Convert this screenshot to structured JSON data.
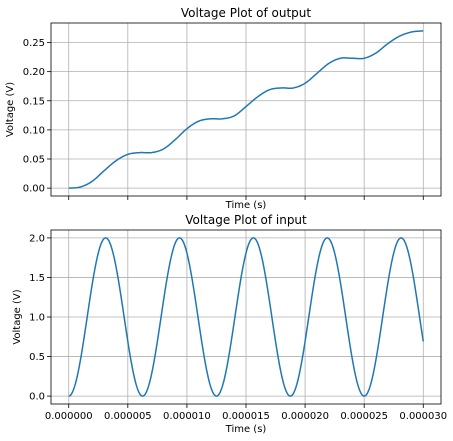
{
  "chart_data": [
    {
      "type": "line",
      "title": "Voltage Plot of output",
      "xlabel": "Time (s)",
      "ylabel": "Voltage (V)",
      "xlim": [
        -1.5e-06,
        3.15e-05
      ],
      "ylim": [
        -0.0135,
        0.2835
      ],
      "grid": true,
      "x_tick_values": [
        0,
        5e-06,
        1e-05,
        1.5e-05,
        2e-05,
        2.5e-05,
        3e-05
      ],
      "x_tick_labels": [],
      "y_ticks": [
        0.0,
        0.05,
        0.1,
        0.15,
        0.2,
        0.25
      ],
      "y_tick_labels": [
        "0.00",
        "0.05",
        "0.10",
        "0.15",
        "0.20",
        "0.25"
      ],
      "color": "#1f77b4",
      "series": [
        {
          "x": [
            0,
            1e-06,
            2e-06,
            3e-06,
            4e-06,
            5e-06,
            6e-06,
            7e-06,
            8e-06,
            9e-06,
            1e-05,
            1.1e-05,
            1.2e-05,
            1.3e-05,
            1.4e-05,
            1.5e-05,
            1.6e-05,
            1.7e-05,
            1.8e-05,
            1.9e-05,
            2e-05,
            2.1e-05,
            2.2e-05,
            2.3e-05,
            2.4e-05,
            2.5e-05,
            2.6e-05,
            2.7e-05,
            2.8e-05,
            2.9e-05,
            3e-05
          ],
          "values": [
            0.0,
            0.002,
            0.012,
            0.03,
            0.047,
            0.058,
            0.061,
            0.061,
            0.067,
            0.083,
            0.102,
            0.115,
            0.119,
            0.119,
            0.124,
            0.14,
            0.157,
            0.169,
            0.172,
            0.172,
            0.18,
            0.197,
            0.214,
            0.223,
            0.223,
            0.223,
            0.232,
            0.248,
            0.261,
            0.268,
            0.27
          ]
        }
      ]
    },
    {
      "type": "line",
      "title": "Voltage Plot of input",
      "xlabel": "Time (s)",
      "ylabel": "Voltage (V)",
      "xlim": [
        -1.5e-06,
        3.15e-05
      ],
      "ylim": [
        -0.1,
        2.1
      ],
      "grid": true,
      "x_tick_values": [
        0,
        5e-06,
        1e-05,
        1.5e-05,
        2e-05,
        2.5e-05,
        3e-05
      ],
      "x_tick_labels": [
        "0.000000",
        "0.000005",
        "0.000010",
        "0.000015",
        "0.000020",
        "0.000025",
        "0.000030"
      ],
      "y_ticks": [
        0.0,
        0.5,
        1.0,
        1.5,
        2.0
      ],
      "y_tick_labels": [
        "0.0",
        "0.5",
        "1.0",
        "1.5",
        "2.0"
      ],
      "color": "#1f77b4",
      "series": [
        {
          "function": "1 - cos(2*pi*f*t)",
          "frequency_hz": 160000,
          "x_range": [
            0,
            3e-05
          ],
          "y_range_observed": [
            0.0,
            2.0
          ]
        }
      ]
    }
  ]
}
